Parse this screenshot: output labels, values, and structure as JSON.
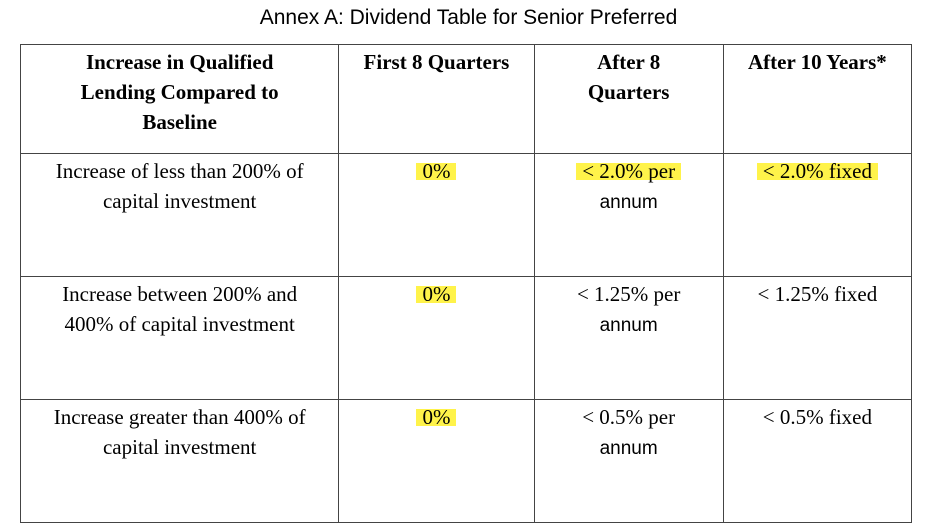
{
  "caption": "Annex A: Dividend Table for Senior Preferred",
  "headers": {
    "col1": "Increase in Qualified Lending Compared to Baseline",
    "col2": "First 8 Quarters",
    "col3": "After 8 Quarters",
    "col4": "After 10 Years*"
  },
  "rows": [
    {
      "increase": "Increase of less than 200% of capital investment",
      "first8": "0%",
      "after8_line1": "< 2.0% per",
      "after8_line2": "annum",
      "after10": "< 2.0% fixed"
    },
    {
      "increase": "Increase between 200% and 400% of capital investment",
      "first8": "0%",
      "after8_line1": "< 1.25% per",
      "after8_line2": "annum",
      "after10": "< 1.25% fixed"
    },
    {
      "increase": "Increase greater than 400% of capital investment",
      "first8": "0%",
      "after8_line1": "< 0.5% per",
      "after8_line2": "annum",
      "after10": "< 0.5% fixed"
    }
  ],
  "highlight_color": "#fff34a"
}
